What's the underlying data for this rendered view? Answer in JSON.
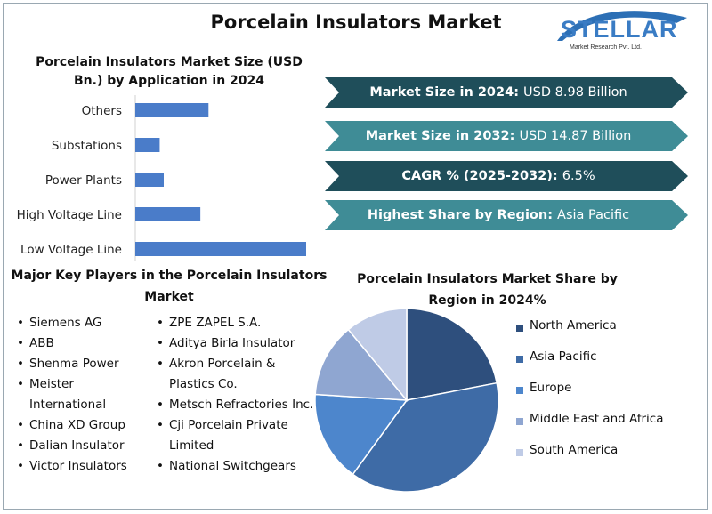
{
  "title": "Porcelain Insulators Market",
  "logo": {
    "name": "STELLAR",
    "subtitle": "Market Research Pvt. Ltd."
  },
  "banners": [
    {
      "label": "Market Size in 2024:",
      "value": "USD 8.98 Billion",
      "style": "dark",
      "color": "#1f4e5a"
    },
    {
      "label": "Market Size in 2032:",
      "value": "USD 14.87 Billion",
      "style": "light",
      "color": "#3f8c96"
    },
    {
      "label": "CAGR % (2025-2032):",
      "value": "6.5%",
      "style": "dark",
      "color": "#1f4e5a"
    },
    {
      "label": "Highest Share by Region:",
      "value": "Asia Pacific",
      "style": "light",
      "color": "#3f8c96"
    }
  ],
  "key_players": {
    "title": "Major Key Players in the Porcelain Insulators Market",
    "col1": [
      "Siemens AG",
      "ABB",
      "Shenma Power",
      "Meister International",
      "China XD Group",
      "Dalian Insulator",
      "Victor Insulators"
    ],
    "col2": [
      "ZPE ZAPEL S.A.",
      "Aditya Birla Insulator",
      "Akron Porcelain & Plastics Co.",
      "Metsch Refractories Inc.",
      "Cji Porcelain Private Limited",
      "National Switchgears"
    ]
  },
  "chart_data": [
    {
      "type": "bar",
      "orientation": "horizontal",
      "title": "Porcelain Insulators Market Size (USD Bn.) by Application in 2024",
      "categories": [
        "Others",
        "Substations",
        "Power Plants",
        "High Voltage Line",
        "Low Voltage Line"
      ],
      "values": [
        0.9,
        0.3,
        0.35,
        0.8,
        2.1
      ],
      "xlim": [
        0,
        2.1
      ],
      "color": "#4a7cc9",
      "grid": false
    },
    {
      "type": "pie",
      "title": "Porcelain Insulators Market Share by Region in 2024%",
      "labels": [
        "North America",
        "Asia Pacific",
        "Europe",
        "Middle East and Africa",
        "South America"
      ],
      "values": [
        22,
        38,
        16,
        13,
        11
      ],
      "colors": [
        "#2e4f7d",
        "#3e6ba6",
        "#4d86cc",
        "#8fa6d1",
        "#bfcbe6"
      ],
      "legend": "right"
    }
  ]
}
